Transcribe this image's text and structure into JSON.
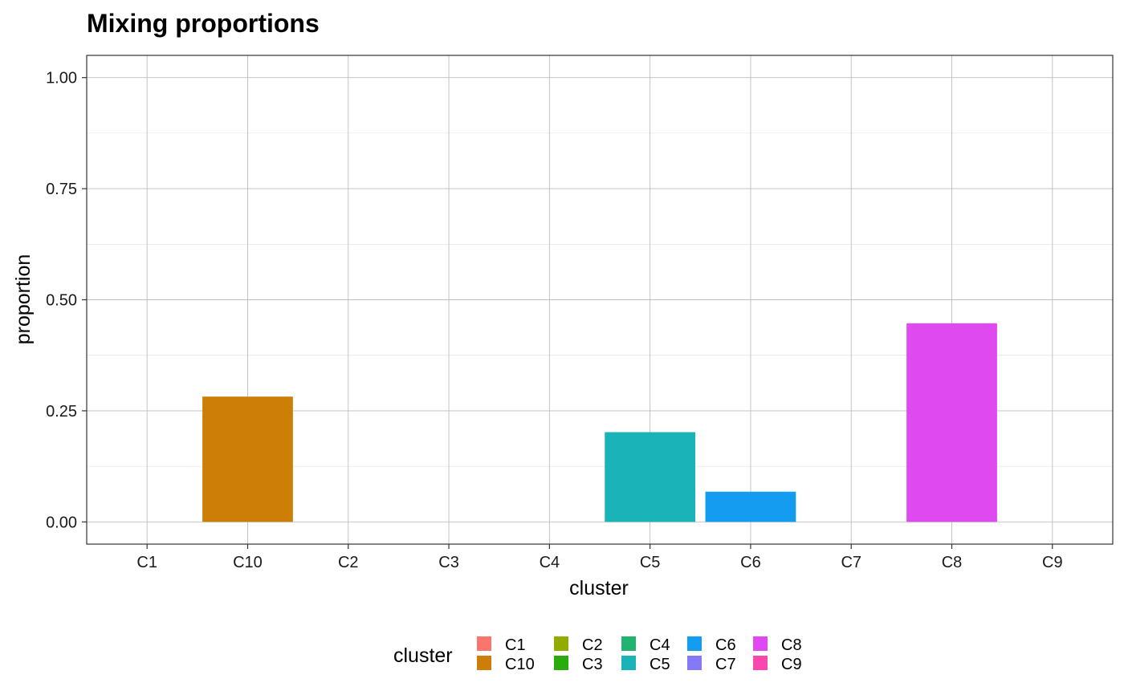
{
  "chart_data": {
    "type": "bar",
    "title": "Mixing proportions",
    "xlabel": "cluster",
    "ylabel": "proportion",
    "ylim": [
      -0.05,
      1.05
    ],
    "yticks": [
      0,
      0.25,
      0.5,
      0.75,
      1.0
    ],
    "ytick_labels": [
      "0.00",
      "0.25",
      "0.50",
      "0.75",
      "1.00"
    ],
    "categories": [
      "C1",
      "C10",
      "C2",
      "C3",
      "C4",
      "C5",
      "C6",
      "C7",
      "C8",
      "C9"
    ],
    "values": [
      0.0,
      0.282,
      0.0,
      0.0,
      0.0,
      0.202,
      0.068,
      0.0,
      0.447,
      0.0
    ],
    "colors": [
      "#F8766D",
      "#D39200",
      "#93AA00",
      "#00BA38",
      "#00C19F",
      "#00B9E3",
      "#619CFF",
      "#8B93FF",
      "#DB72FB",
      "#FF61C3"
    ],
    "bar_colors": [
      "#F8766D",
      "#CD7E06",
      "#93AA00",
      "#2AAD0C",
      "#22B370",
      "#1AB3B8",
      "#149DF0",
      "#8679F8",
      "#DE4AF0",
      "#F848B0"
    ],
    "grid": true,
    "legend": {
      "title": "cluster",
      "placement": "bottom",
      "entries": [
        "C1",
        "C10",
        "C2",
        "C3",
        "C4",
        "C5",
        "C6",
        "C7",
        "C8",
        "C9"
      ]
    }
  }
}
